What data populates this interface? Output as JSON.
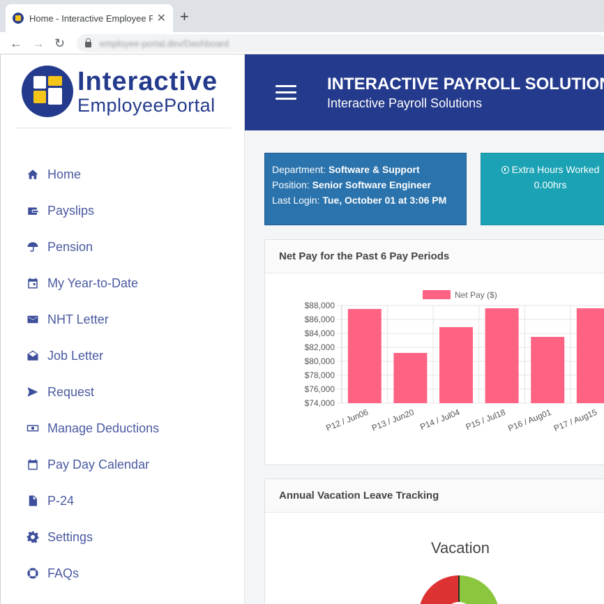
{
  "browser": {
    "tab_title": "Home - Interactive Employee Portal",
    "url": "employee-portal.dev/Dashboard"
  },
  "logo": {
    "line1": "Interactive",
    "line2": "EmployeePortal"
  },
  "sidebar": {
    "items": [
      {
        "label": "Home",
        "icon": "home-icon"
      },
      {
        "label": "Payslips",
        "icon": "wallet-icon"
      },
      {
        "label": "Pension",
        "icon": "umbrella-icon"
      },
      {
        "label": "My Year-to-Date",
        "icon": "calendar-icon"
      },
      {
        "label": "NHT Letter",
        "icon": "mail-icon"
      },
      {
        "label": "Job Letter",
        "icon": "envelope-open-icon"
      },
      {
        "label": "Request",
        "icon": "send-icon"
      },
      {
        "label": "Manage Deductions",
        "icon": "money-icon"
      },
      {
        "label": "Pay Day Calendar",
        "icon": "calendar-icon"
      },
      {
        "label": "P-24",
        "icon": "file-icon"
      },
      {
        "label": "Settings",
        "icon": "gear-icon"
      },
      {
        "label": "FAQs",
        "icon": "lifebuoy-icon"
      }
    ]
  },
  "header": {
    "title": "INTERACTIVE PAYROLL SOLUTIONS",
    "subtitle": "Interactive Payroll Solutions"
  },
  "info": {
    "department_label": "Department:",
    "department": "Software & Support",
    "position_label": "Position:",
    "position": "Senior Software Engineer",
    "last_login_label": "Last Login:",
    "last_login": "Tue, October 01 at 3:06 PM"
  },
  "hours": {
    "label": "Extra Hours Worked",
    "value": "0.00hrs"
  },
  "chart_panel": {
    "title": "Net Pay for the Past 6 Pay Periods"
  },
  "chart_data": {
    "type": "bar",
    "categories": [
      "P12 / Jun06",
      "P13 / Jun20",
      "P14 / Jul04",
      "P15 / Jul18",
      "P16 / Aug01",
      "P17 / Aug15"
    ],
    "series": [
      {
        "name": "Net Pay ($)",
        "values": [
          87500,
          81200,
          84900,
          87600,
          83500,
          87600
        ],
        "color": "#ff6384"
      }
    ],
    "yticks": [
      "$74,000",
      "$76,000",
      "$78,000",
      "$80,000",
      "$82,000",
      "$84,000",
      "$86,000",
      "$88,000"
    ],
    "ylim": [
      74000,
      88000
    ],
    "legend": "top",
    "grid": true
  },
  "vacation_panel": {
    "title": "Annual Vacation Leave Tracking",
    "chart_title": "Vacation"
  },
  "colors": {
    "brand": "#243a8c",
    "info_card": "#2a73ad",
    "hours_card": "#1ba3b5",
    "bar": "#ff6384",
    "gauge_used": "#dc3232",
    "gauge_remaining": "#8cc63f"
  }
}
